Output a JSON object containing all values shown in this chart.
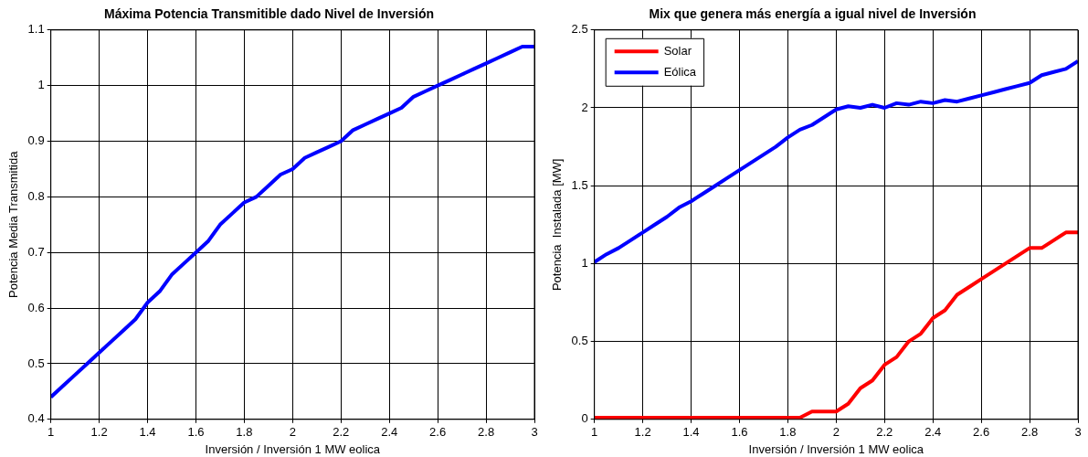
{
  "chart_data": [
    {
      "type": "line",
      "title": "Máxima Potencia Transmitible dado Nivel de Inversión",
      "xlabel": "Inversión / Inversión 1 MW eolica",
      "ylabel": "Potencia Media Transmitida",
      "x": [
        1,
        1.05,
        1.1,
        1.15,
        1.2,
        1.25,
        1.3,
        1.35,
        1.4,
        1.45,
        1.5,
        1.55,
        1.6,
        1.65,
        1.7,
        1.75,
        1.8,
        1.85,
        1.9,
        1.95,
        2,
        2.05,
        2.1,
        2.15,
        2.2,
        2.25,
        2.3,
        2.35,
        2.4,
        2.45,
        2.5,
        2.55,
        2.6,
        2.65,
        2.7,
        2.75,
        2.8,
        2.85,
        2.9,
        2.95,
        3
      ],
      "series": [
        {
          "color": "#0000ff",
          "values": [
            0.44,
            0.46,
            0.48,
            0.5,
            0.52,
            0.54,
            0.56,
            0.58,
            0.61,
            0.63,
            0.66,
            0.68,
            0.7,
            0.72,
            0.75,
            0.77,
            0.79,
            0.8,
            0.82,
            0.84,
            0.85,
            0.87,
            0.88,
            0.89,
            0.9,
            0.92,
            0.93,
            0.94,
            0.95,
            0.96,
            0.98,
            0.99,
            1.0,
            1.01,
            1.02,
            1.03,
            1.04,
            1.05,
            1.06,
            1.07,
            1.07
          ]
        }
      ],
      "xlim": [
        1,
        3
      ],
      "xticks": [
        1,
        1.2,
        1.4,
        1.6,
        1.8,
        2,
        2.2,
        2.4,
        2.6,
        2.8,
        3
      ],
      "ylim": [
        0.4,
        1.1
      ],
      "yticks": [
        0.4,
        0.5,
        0.6,
        0.7,
        0.8,
        0.9,
        1,
        1.1
      ],
      "grid": true,
      "legend": false
    },
    {
      "type": "line",
      "title": "Mix que genera más energía a igual nivel de Inversión",
      "xlabel": "Inversión / Inversión 1 MW eolica",
      "ylabel": "Potencia  Instalada [MW]",
      "x": [
        1,
        1.05,
        1.1,
        1.15,
        1.2,
        1.25,
        1.3,
        1.35,
        1.4,
        1.45,
        1.5,
        1.55,
        1.6,
        1.65,
        1.7,
        1.75,
        1.8,
        1.85,
        1.9,
        1.95,
        2,
        2.05,
        2.1,
        2.15,
        2.2,
        2.25,
        2.3,
        2.35,
        2.4,
        2.45,
        2.5,
        2.55,
        2.6,
        2.65,
        2.7,
        2.75,
        2.8,
        2.85,
        2.9,
        2.95,
        3
      ],
      "series": [
        {
          "name": "Solar",
          "color": "#ff0000",
          "values": [
            0.01,
            0.01,
            0.01,
            0.01,
            0.01,
            0.01,
            0.01,
            0.01,
            0.01,
            0.01,
            0.01,
            0.01,
            0.01,
            0.01,
            0.01,
            0.01,
            0.01,
            0.01,
            0.05,
            0.05,
            0.05,
            0.1,
            0.2,
            0.25,
            0.35,
            0.4,
            0.5,
            0.55,
            0.65,
            0.7,
            0.8,
            0.85,
            0.9,
            0.95,
            1.0,
            1.05,
            1.1,
            1.1,
            1.15,
            1.2,
            1.2
          ]
        },
        {
          "name": "Eólica",
          "color": "#0000ff",
          "values": [
            1.01,
            1.06,
            1.1,
            1.15,
            1.2,
            1.25,
            1.3,
            1.36,
            1.4,
            1.45,
            1.5,
            1.55,
            1.6,
            1.65,
            1.7,
            1.75,
            1.81,
            1.86,
            1.89,
            1.94,
            1.99,
            2.01,
            2.0,
            2.02,
            2.0,
            2.03,
            2.02,
            2.04,
            2.03,
            2.05,
            2.04,
            2.06,
            2.08,
            2.1,
            2.12,
            2.14,
            2.16,
            2.21,
            2.23,
            2.25,
            2.3
          ]
        }
      ],
      "xlim": [
        1,
        3
      ],
      "xticks": [
        1,
        1.2,
        1.4,
        1.6,
        1.8,
        2,
        2.2,
        2.4,
        2.6,
        2.8,
        3
      ],
      "ylim": [
        0,
        2.5
      ],
      "yticks": [
        0,
        0.5,
        1,
        1.5,
        2,
        2.5
      ],
      "grid": true,
      "legend": "top left"
    }
  ]
}
